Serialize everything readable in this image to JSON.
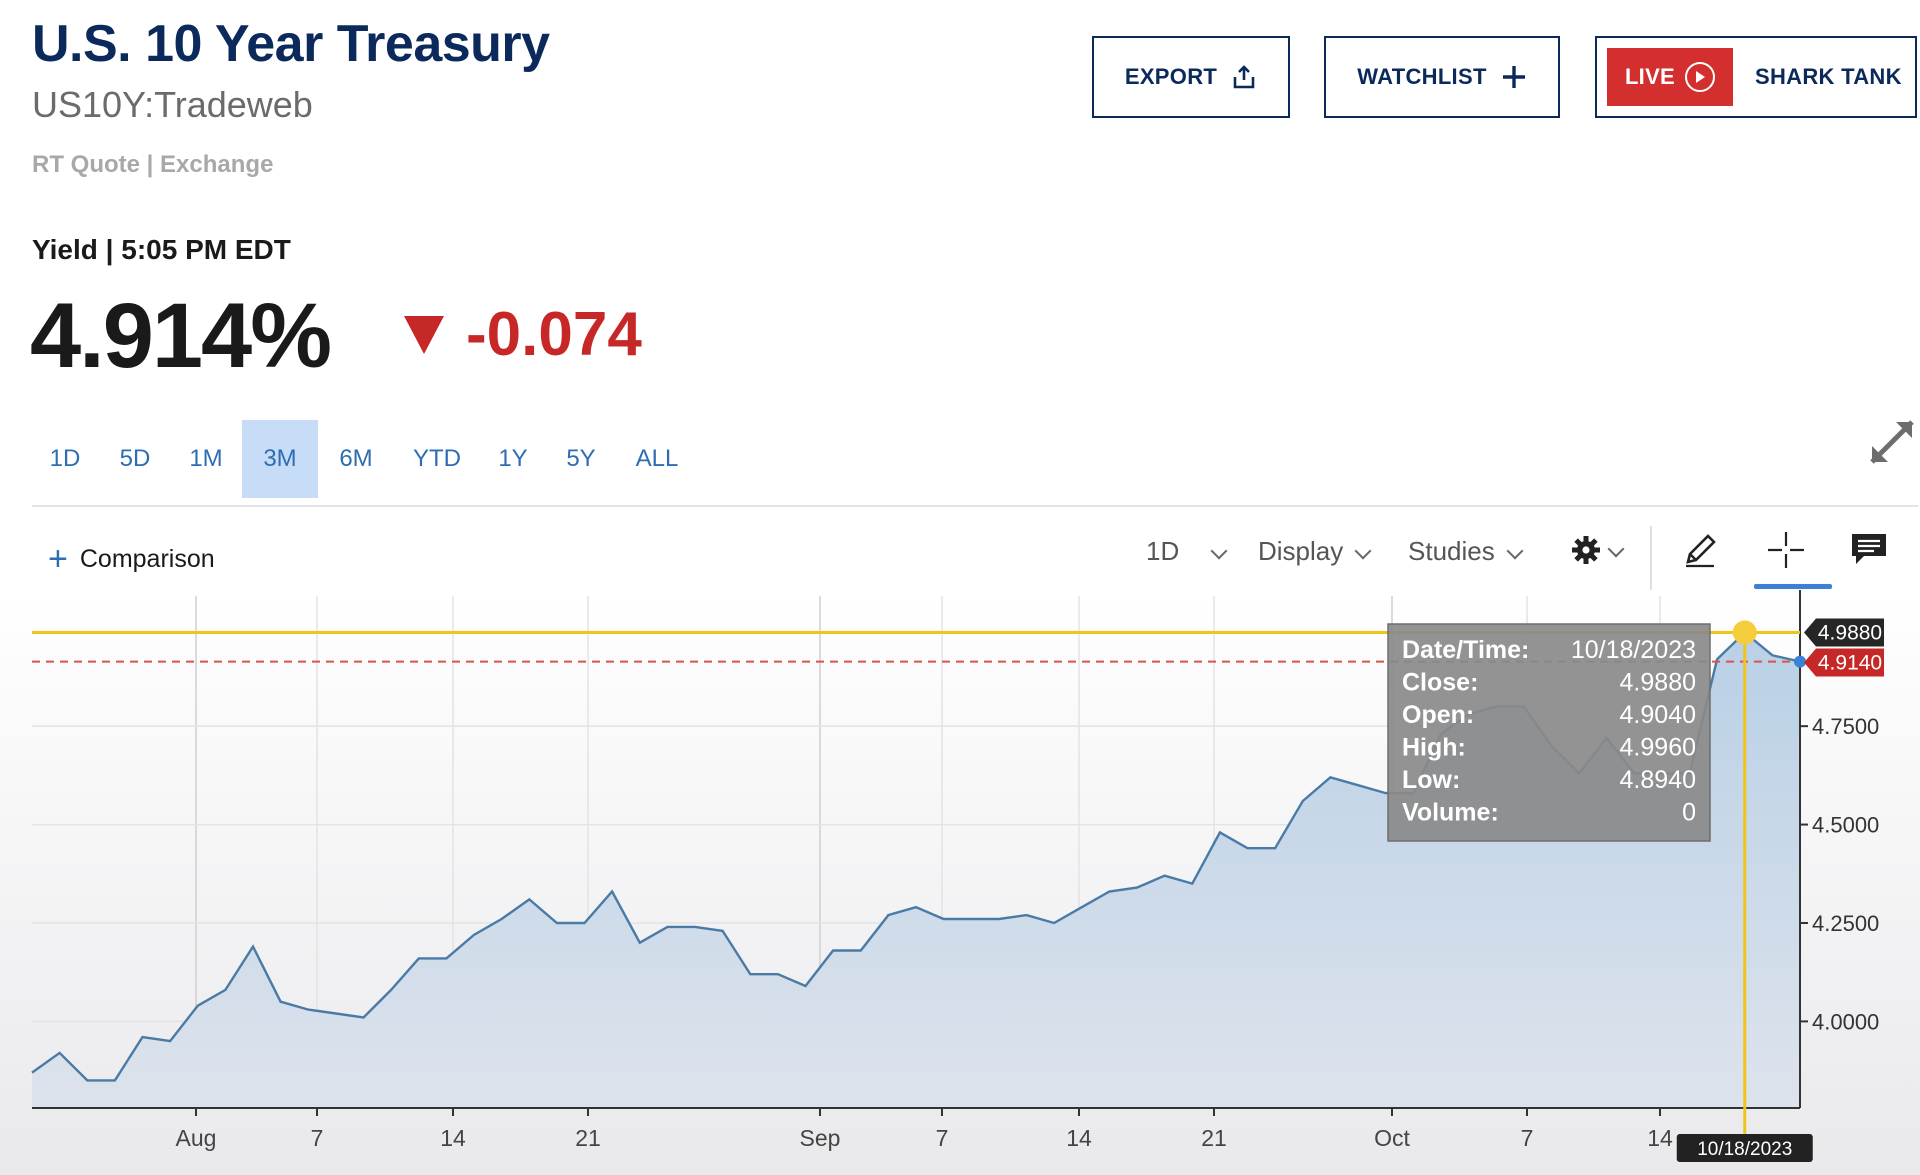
{
  "header": {
    "title": "U.S. 10 Year Treasury",
    "symbol": "US10Y:Tradeweb",
    "quote_type": "RT Quote | Exchange",
    "export_label": "EXPORT",
    "watchlist_label": "WATCHLIST",
    "live_label": "LIVE",
    "show_label": "SHARK TANK"
  },
  "quote": {
    "label": "Yield | 5:05 PM EDT",
    "value": "4.914%",
    "change": "-0.074",
    "change_color": "#c62828"
  },
  "range_tabs": [
    {
      "label": "1D",
      "active": false
    },
    {
      "label": "5D",
      "active": false
    },
    {
      "label": "1M",
      "active": false
    },
    {
      "label": "3M",
      "active": true
    },
    {
      "label": "6M",
      "active": false
    },
    {
      "label": "YTD",
      "active": false
    },
    {
      "label": "1Y",
      "active": false
    },
    {
      "label": "5Y",
      "active": false
    },
    {
      "label": "ALL",
      "active": false
    }
  ],
  "toolbar": {
    "comparison_label": "Comparison",
    "interval_label": "1D",
    "display_label": "Display",
    "studies_label": "Studies"
  },
  "chart_data": {
    "type": "area",
    "y_ticks": [
      "4.7500",
      "4.5000",
      "4.2500",
      "4.0000"
    ],
    "x_ticks": [
      "Aug",
      "7",
      "14",
      "21",
      "Sep",
      "7",
      "14",
      "21",
      "Oct",
      "7",
      "14"
    ],
    "ylim": [
      3.78,
      5.04
    ],
    "grid": true,
    "line_color": "#4a7ba6",
    "fill_color": "#b9d0e6",
    "values": [
      3.87,
      3.92,
      3.85,
      3.85,
      3.96,
      3.95,
      4.04,
      4.08,
      4.19,
      4.05,
      4.03,
      4.02,
      4.01,
      4.08,
      4.16,
      4.16,
      4.22,
      4.26,
      4.31,
      4.25,
      4.25,
      4.33,
      4.2,
      4.24,
      4.24,
      4.23,
      4.12,
      4.12,
      4.09,
      4.18,
      4.18,
      4.27,
      4.29,
      4.26,
      4.26,
      4.26,
      4.27,
      4.25,
      4.29,
      4.33,
      4.34,
      4.37,
      4.35,
      4.48,
      4.44,
      4.44,
      4.56,
      4.62,
      4.6,
      4.58,
      4.58,
      4.73,
      4.78,
      4.8,
      4.8,
      4.7,
      4.63,
      4.72,
      4.63,
      4.63,
      4.63,
      4.92,
      4.988,
      4.93,
      4.914
    ],
    "crosshair": {
      "date_label": "10/18/2023",
      "value_label": "4.9880",
      "value": 4.988
    },
    "last_price": {
      "label": "4.9140",
      "value": 4.914
    },
    "tooltip": [
      {
        "label": "Date/Time:",
        "value": "10/18/2023"
      },
      {
        "label": "Close:",
        "value": "4.9880"
      },
      {
        "label": "Open:",
        "value": "4.9040"
      },
      {
        "label": "High:",
        "value": "4.9960"
      },
      {
        "label": "Low:",
        "value": "4.8940"
      },
      {
        "label": "Volume:",
        "value": "0"
      }
    ]
  }
}
